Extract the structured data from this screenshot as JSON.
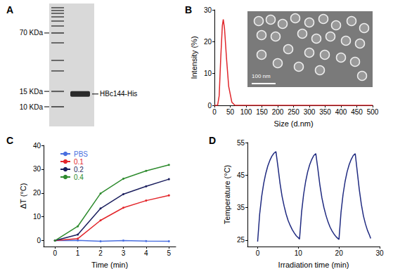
{
  "gel": {
    "title": "A",
    "markers": [
      {
        "value": 70,
        "label": "70 KDa"
      },
      {
        "value": 15,
        "label": "15 KDa"
      },
      {
        "value": 10,
        "label": "10 KDa"
      }
    ],
    "band": {
      "value": 14,
      "label": "HBc144-His"
    }
  },
  "chart_data": [
    {
      "title": "B",
      "type": "line",
      "xlabel": "Size (d.nm)",
      "ylabel": "Intensity (%)",
      "x": [
        0,
        10,
        15,
        20,
        25,
        28,
        32,
        38,
        45,
        55,
        65,
        500
      ],
      "values": [
        0,
        0,
        3,
        15,
        25,
        27,
        24,
        15,
        6,
        1,
        0,
        0
      ],
      "color": "#e0262b",
      "marker": "none",
      "xlim": [
        0,
        500
      ],
      "xticks": [
        0,
        50,
        100,
        150,
        200,
        250,
        300,
        350,
        400,
        450,
        500
      ],
      "ylim": [
        0,
        30
      ],
      "yticks": [
        0,
        10,
        20,
        30
      ],
      "grid": false,
      "annotations": [
        "100 nm"
      ]
    },
    {
      "title": "C",
      "type": "line",
      "xlabel": "Time (min)",
      "ylabel": "ΔT (°C)",
      "x": [
        0,
        1,
        2,
        3,
        4,
        5
      ],
      "series": [
        {
          "name": "PBS",
          "color": "#4a6fe0",
          "values": [
            0,
            0.1,
            -0.3,
            0,
            -0.2,
            -0.3
          ]
        },
        {
          "name": "0.1",
          "color": "#e3262b",
          "values": [
            0,
            0.8,
            8.5,
            13.8,
            16.8,
            19
          ]
        },
        {
          "name": "0.2",
          "color": "#1b1f5e",
          "values": [
            0,
            2.5,
            13.5,
            19.5,
            22.8,
            25.8
          ]
        },
        {
          "name": "0.4",
          "color": "#2e8b2e",
          "values": [
            0,
            6,
            19.8,
            26,
            29.3,
            31.8
          ]
        }
      ],
      "marker": "circle",
      "legend": "upper left",
      "xlim": [
        -0.5,
        5.3
      ],
      "xticks": [
        0,
        1,
        2,
        3,
        4,
        5
      ],
      "ylim": [
        -2.5,
        40
      ],
      "yticks": [
        0,
        10,
        20,
        30,
        40
      ],
      "grid": false
    },
    {
      "title": "D",
      "type": "line",
      "xlabel": "Irradiation time (min)",
      "ylabel": "Temperature (°C)",
      "x": [
        0,
        0.5,
        1,
        1.5,
        2,
        2.5,
        3,
        3.5,
        4,
        4.5,
        5,
        5.5,
        6,
        6.5,
        7,
        7.5,
        8,
        8.5,
        9,
        9.5,
        10,
        10.3,
        10.8,
        11.3,
        11.8,
        12.3,
        12.8,
        13.3,
        13.8,
        14.3,
        14.8,
        15.3,
        15.8,
        16.3,
        16.8,
        17.3,
        17.8,
        18.3,
        18.8,
        19.3,
        19.8,
        20,
        20.5,
        21,
        21.5,
        22,
        22.5,
        23,
        23.5,
        24,
        24.5,
        25,
        25.5,
        26,
        26.5,
        27,
        27.5,
        27.8
      ],
      "values": [
        24.5,
        33,
        38.5,
        42.5,
        45.5,
        47.8,
        49.5,
        50.8,
        51.7,
        52.2,
        47.5,
        42.5,
        38.5,
        35.5,
        33,
        31,
        29.5,
        28.2,
        27.2,
        26.3,
        25.7,
        25.3,
        33.5,
        39,
        43,
        46,
        48.2,
        49.8,
        51,
        51.6,
        47,
        42,
        38,
        35,
        32.6,
        30.6,
        29,
        27.8,
        26.8,
        26,
        25.4,
        25.2,
        33.5,
        39,
        43,
        46,
        48.2,
        49.8,
        51,
        51.6,
        46,
        40.5,
        36,
        32.5,
        30,
        28,
        26.5,
        25.5
      ],
      "color": "#1f2a80",
      "marker": "none",
      "xlim": [
        -2.5,
        30
      ],
      "xticks": [
        0,
        10,
        20,
        30
      ],
      "ylim": [
        23,
        55
      ],
      "yticks": [
        25,
        35,
        45,
        55
      ],
      "grid": false
    }
  ]
}
